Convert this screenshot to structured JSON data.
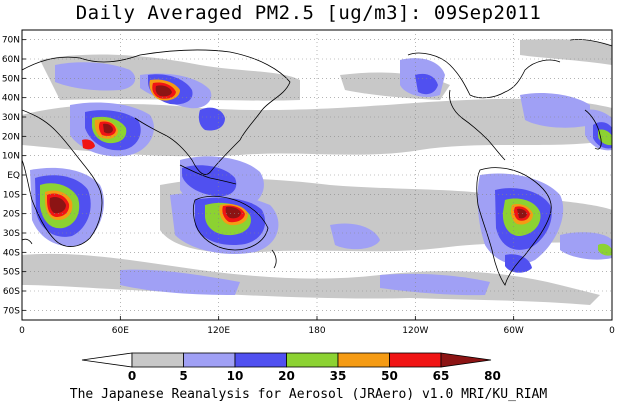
{
  "title": "Daily Averaged PM2.5 [ug/m3]: 09Sep2011",
  "footer": "The Japanese Reanalysis for Aerosol (JRAero) v1.0 MRI/KU_RIAM",
  "lat_labels": [
    "70N",
    "60N",
    "50N",
    "40N",
    "30N",
    "20N",
    "10N",
    "EQ",
    "10S",
    "20S",
    "30S",
    "40S",
    "50S",
    "60S",
    "70S"
  ],
  "lon_labels": [
    "0",
    "60E",
    "120E",
    "180",
    "120W",
    "60W",
    "0"
  ],
  "colorbar": {
    "ticks": [
      "0",
      "5",
      "10",
      "20",
      "35",
      "50",
      "65",
      "80"
    ],
    "colors": [
      "#ffffff",
      "#c8c8c8",
      "#a0a0f5",
      "#5050f0",
      "#8cd232",
      "#f59b14",
      "#f01414",
      "#8c1414"
    ]
  },
  "colors": {
    "level_5": "#c8c8c8",
    "level_10": "#a0a0f5",
    "level_20": "#5050f0",
    "level_35": "#8cd232",
    "level_50": "#f59b14",
    "level_65": "#f01414",
    "level_80": "#8c1414"
  }
}
